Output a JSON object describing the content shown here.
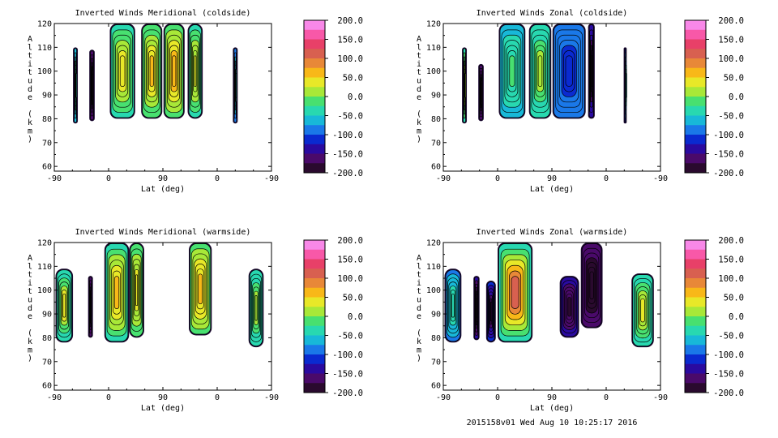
{
  "footer": "2015158v01 Wed Aug 10 10:25:17 2016",
  "colorbar": {
    "ticks": [
      "200.0",
      "150.0",
      "100.0",
      "50.0",
      "0.0",
      "-50.0",
      "-100.0",
      "-150.0",
      "-200.0"
    ],
    "min": -200,
    "max": 200,
    "colors": [
      "#2a0a2e",
      "#4a0a6a",
      "#2a0aa0",
      "#0a2ad0",
      "#1a78e8",
      "#18b8d8",
      "#28d8b0",
      "#48e070",
      "#a8e838",
      "#e8e828",
      "#f8b818",
      "#e88838",
      "#d86050",
      "#e84068",
      "#f858a8",
      "#f888e8"
    ]
  },
  "chart_data": [
    {
      "type": "heatmap",
      "title": "Inverted Winds Meridional (coldside)",
      "xlabel": "Lat (deg)",
      "ylabel": "Altitude (km)",
      "x_ticks": [
        "-90",
        "0",
        "90",
        "0",
        "-90"
      ],
      "y_ticks": [
        "120",
        "110",
        "100",
        "90",
        "80",
        "70",
        "60"
      ],
      "ylim": [
        58,
        120
      ],
      "regions": [
        {
          "lon": [
            -59,
            -51
          ],
          "alt": [
            78,
            110
          ],
          "value": -70,
          "core": -30
        },
        {
          "lon": [
            -32,
            -23
          ],
          "alt": [
            79,
            109
          ],
          "value": -150,
          "core": -190
        },
        {
          "lon": [
            2,
            44
          ],
          "alt": [
            80,
            120
          ],
          "value": -40,
          "core": 40
        },
        {
          "lon": [
            54,
            89
          ],
          "alt": [
            80,
            120
          ],
          "value": -30,
          "core": 60
        },
        {
          "lon": [
            91,
            126
          ],
          "alt": [
            80,
            120
          ],
          "value": -20,
          "core": 70
        },
        {
          "lon": [
            131,
            156
          ],
          "alt": [
            80,
            120
          ],
          "value": -40,
          "core": 30
        },
        {
          "lon": [
            206,
            214
          ],
          "alt": [
            78,
            110
          ],
          "value": -90,
          "core": -40
        }
      ]
    },
    {
      "type": "heatmap",
      "title": "Inverted Winds Zonal (coldside)",
      "xlabel": "Lat (deg)",
      "ylabel": "Altitude (km)",
      "x_ticks": [
        "-90",
        "0",
        "90",
        "0",
        "-90"
      ],
      "y_ticks": [
        "120",
        "110",
        "100",
        "90",
        "80",
        "70",
        "60"
      ],
      "ylim": [
        58,
        120
      ],
      "regions": [
        {
          "lon": [
            -59,
            -51
          ],
          "alt": [
            78,
            110
          ],
          "value": -40,
          "core": 20
        },
        {
          "lon": [
            -32,
            -23
          ],
          "alt": [
            79,
            103
          ],
          "value": -150,
          "core": -190
        },
        {
          "lon": [
            2,
            46
          ],
          "alt": [
            80,
            120
          ],
          "value": -70,
          "core": -20
        },
        {
          "lon": [
            52,
            89
          ],
          "alt": [
            80,
            120
          ],
          "value": -60,
          "core": 10
        },
        {
          "lon": [
            91,
            146
          ],
          "alt": [
            80,
            120
          ],
          "value": -80,
          "core": -110
        },
        {
          "lon": [
            150,
            161
          ],
          "alt": [
            80,
            120
          ],
          "value": -120,
          "core": -180
        },
        {
          "lon": [
            209,
            214
          ],
          "alt": [
            78,
            110
          ],
          "value": -110,
          "core": -60
        }
      ]
    },
    {
      "type": "heatmap",
      "title": "Inverted Winds Meridional (warmside)",
      "xlabel": "Lat (deg)",
      "ylabel": "Altitude (km)",
      "x_ticks": [
        "-90",
        "0",
        "90",
        "0",
        "-90"
      ],
      "y_ticks": [
        "120",
        "110",
        "100",
        "90",
        "80",
        "70",
        "60"
      ],
      "ylim": [
        58,
        120
      ],
      "regions": [
        {
          "lon": [
            -88,
            -59
          ],
          "alt": [
            78,
            109
          ],
          "value": -60,
          "core": 40
        },
        {
          "lon": [
            -34,
            -26
          ],
          "alt": [
            80,
            106
          ],
          "value": -150,
          "core": -190
        },
        {
          "lon": [
            -7,
            34
          ],
          "alt": [
            78,
            120
          ],
          "value": -40,
          "core": 60
        },
        {
          "lon": [
            34,
            59
          ],
          "alt": [
            80,
            120
          ],
          "value": -20,
          "core": 40
        },
        {
          "lon": [
            133,
            171
          ],
          "alt": [
            81,
            120
          ],
          "value": -20,
          "core": 60
        },
        {
          "lon": [
            232,
            257
          ],
          "alt": [
            76,
            109
          ],
          "value": -60,
          "core": 20
        }
      ]
    },
    {
      "type": "heatmap",
      "title": "Inverted Winds Zonal (warmside)",
      "xlabel": "Lat (deg)",
      "ylabel": "Altitude (km)",
      "x_ticks": [
        "-90",
        "0",
        "90",
        "0",
        "-90"
      ],
      "y_ticks": [
        "120",
        "110",
        "100",
        "90",
        "80",
        "70",
        "60"
      ],
      "ylim": [
        58,
        120
      ],
      "regions": [
        {
          "lon": [
            -88,
            -60
          ],
          "alt": [
            78,
            109
          ],
          "value": -90,
          "core": -30
        },
        {
          "lon": [
            -40,
            -30
          ],
          "alt": [
            79,
            106
          ],
          "value": -140,
          "core": -180
        },
        {
          "lon": [
            -19,
            -3
          ],
          "alt": [
            78,
            104
          ],
          "value": -110,
          "core": -170
        },
        {
          "lon": [
            0,
            58
          ],
          "alt": [
            78,
            120
          ],
          "value": -50,
          "core": 110
        },
        {
          "lon": [
            103,
            135
          ],
          "alt": [
            80,
            106
          ],
          "value": -130,
          "core": -180
        },
        {
          "lon": [
            138,
            174
          ],
          "alt": [
            84,
            120
          ],
          "value": -160,
          "core": -190
        },
        {
          "lon": [
            222,
            259
          ],
          "alt": [
            76,
            107
          ],
          "value": -60,
          "core": 30
        }
      ]
    }
  ]
}
